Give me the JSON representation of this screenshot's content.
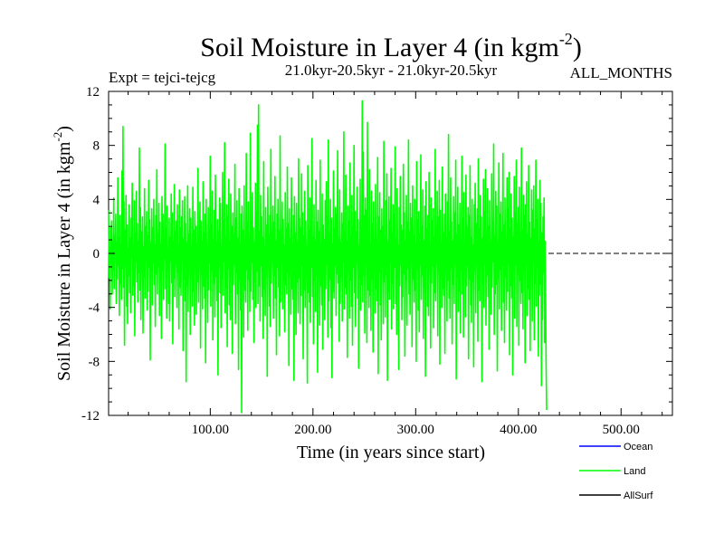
{
  "chart_data": {
    "type": "line",
    "title": "Soil Moisture in Layer 4 (in kgm",
    "title_sup": "-2",
    "title_close": ")",
    "experiment": "Expt = tejci-tejcg",
    "period": "21.0kyr-20.5kyr - 21.0kyr-20.5kyr",
    "months": "ALL_MONTHS",
    "xlabel": "Time (in years since start)",
    "ylabel": "Soil Moisture in Layer 4 (in kgm",
    "ylabel_sup": "-2",
    "ylabel_close": ")",
    "xlim": [
      1,
      550
    ],
    "ylim": [
      -12,
      12
    ],
    "x_ticks": [
      100,
      200,
      300,
      400,
      500
    ],
    "x_tick_labels": [
      "100.00",
      "200.00",
      "300.00",
      "400.00",
      "500.00"
    ],
    "y_ticks": [
      12,
      8,
      4,
      0,
      -4,
      -8,
      -12
    ],
    "y_tick_labels": [
      "12",
      "8",
      "4",
      "0",
      "-4",
      "-8",
      "-12"
    ],
    "zero_line": "dashed",
    "legend": [
      {
        "name": "Ocean",
        "color": "#0000ff"
      },
      {
        "name": "Land",
        "color": "#00ff00"
      },
      {
        "name": "AllSurf",
        "color": "#000000"
      }
    ],
    "series": [
      {
        "name": "Land",
        "color": "#00ff00",
        "x_start": 1,
        "x_step": 0.5,
        "values": [
          3.2,
          -1.8,
          0.5,
          -4.1,
          1.9,
          -0.7,
          2.4,
          -3.0,
          0.9,
          -1.2,
          4.1,
          -2.6,
          1.3,
          -0.4,
          2.9,
          -3.7,
          0.8,
          -1.9,
          5.6,
          -0.8,
          1.2,
          -4.6,
          2.8,
          -2.2,
          0.6,
          -3.4,
          6.1,
          -1.1,
          9.4,
          -2.5,
          3.8,
          -6.8,
          1.7,
          -0.9,
          4.3,
          -3.9,
          2.1,
          -5.2,
          0.4,
          -1.6,
          3.6,
          -2.9,
          1.1,
          -4.4,
          2.6,
          -0.3,
          5.2,
          -3.1,
          0.7,
          -2.4,
          3.9,
          -6.1,
          1.5,
          -0.6,
          4.6,
          -2.1,
          2.2,
          -3.6,
          0.9,
          -1.4,
          7.8,
          -2.7,
          3.4,
          -4.9,
          1.6,
          -0.8,
          2.7,
          -5.9,
          0.5,
          -1.7,
          4.8,
          -3.3,
          2.0,
          -0.5,
          3.1,
          -4.2,
          1.3,
          -2.8,
          5.4,
          -1.0,
          2.5,
          -7.9,
          0.8,
          -1.3,
          3.3,
          -3.8,
          1.9,
          -0.7,
          4.0,
          -2.3,
          0.6,
          -5.4,
          2.8,
          -1.5,
          6.2,
          -3.0,
          1.4,
          -0.9,
          3.7,
          -4.6,
          2.3,
          -2.0,
          0.7,
          -6.3,
          4.2,
          -1.2,
          2.9,
          -3.4,
          1.0,
          -0.4,
          8.1,
          -2.6,
          1.8,
          -4.8,
          3.5,
          -1.1,
          0.4,
          -3.7,
          2.6,
          -5.0,
          1.2,
          -0.6,
          4.4,
          -2.2,
          3.0,
          -6.7,
          0.9,
          -1.8,
          5.1,
          -3.2,
          1.6,
          -0.8,
          2.4,
          -4.0,
          3.6,
          -1.4,
          0.6,
          -5.6,
          4.7,
          -2.5,
          1.9,
          -3.1,
          2.7,
          -0.5,
          3.9,
          -7.2,
          1.1,
          -1.9,
          4.2,
          -3.5,
          2.2,
          -9.5,
          0.8,
          -2.4,
          5.0,
          -4.3,
          1.4,
          -0.9,
          3.3,
          -6.0,
          2.6,
          -1.6,
          0.5,
          -3.9,
          4.9,
          -2.8,
          1.7,
          -5.3,
          3.1,
          -1.0,
          2.0,
          -4.5,
          0.7,
          -2.1,
          6.3,
          -3.6,
          1.3,
          -0.6,
          3.8,
          -7.0,
          2.4,
          -1.5,
          0.9,
          -4.1,
          5.3,
          -2.4,
          1.5,
          -3.3,
          2.9,
          -8.1,
          4.0,
          -1.2,
          0.6,
          -5.1,
          3.4,
          -2.7,
          1.8,
          -0.7,
          7.2,
          -3.9,
          2.1,
          -1.3,
          4.6,
          -6.4,
          1.0,
          -2.2,
          3.2,
          -4.7,
          5.8,
          -1.7,
          0.8,
          -3.5,
          2.5,
          -9.0,
          1.6,
          -0.9,
          4.1,
          -2.9,
          3.7,
          -5.5,
          0.5,
          -1.8,
          6.0,
          -3.1,
          2.3,
          -0.6,
          8.2,
          -4.4,
          1.2,
          -2.5,
          3.6,
          -6.9,
          2.7,
          -1.1,
          5.5,
          -3.8,
          0.9,
          -4.9,
          4.4,
          -1.6,
          2.0,
          -7.4,
          3.0,
          -2.3,
          1.4,
          -0.8,
          6.6,
          -5.2,
          2.6,
          -1.4,
          3.9,
          -3.0,
          1.1,
          -8.6,
          4.8,
          -2.0,
          0.7,
          -4.2,
          2.9,
          -11.8,
          3.5,
          -1.5,
          1.7,
          -6.2,
          5.0,
          -2.7,
          0.6,
          -3.6,
          7.4,
          -1.2,
          2.3,
          -5.7,
          3.8,
          -1.9,
          1.0,
          -4.3,
          8.9,
          -2.8,
          2.4,
          -0.7,
          4.5,
          -3.4,
          1.9,
          -6.6,
          0.8,
          -2.1,
          5.2,
          -4.0,
          3.1,
          -1.3,
          9.5,
          -3.7,
          11.0,
          -2.4,
          1.6,
          -5.0,
          4.3,
          -0.9,
          2.7,
          -3.2,
          1.2,
          -6.3,
          6.8,
          -2.6,
          0.5,
          -4.6,
          3.4,
          -1.7,
          2.1,
          -9.1,
          4.9,
          -1.1,
          1.4,
          -3.9,
          2.8,
          -5.4,
          7.7,
          -2.2,
          1.0,
          -0.6,
          3.5,
          -4.8,
          2.3,
          -1.6,
          5.7,
          -3.3,
          0.9,
          -7.5,
          2.9,
          -1.0,
          4.0,
          -2.5,
          1.7,
          -6.1,
          8.7,
          -3.6,
          1.3,
          -0.7,
          3.8,
          -4.1,
          2.5,
          -1.9,
          0.6,
          -5.8,
          4.5,
          -2.3,
          1.8,
          -3.0,
          6.4,
          -1.4,
          2.2,
          -8.3,
          3.3,
          -0.8,
          1.1,
          -4.5,
          5.6,
          -2.6,
          0.7,
          -3.4,
          2.8,
          -9.4,
          4.2,
          -1.5,
          1.5,
          -6.0,
          3.7,
          -2.1,
          0.8,
          -4.4,
          7.0,
          -1.8,
          2.6,
          -5.2,
          1.9,
          -3.1,
          5.9,
          -0.9,
          3.0,
          -7.8,
          1.3,
          -2.7,
          4.6,
          -4.0,
          2.4,
          -1.2,
          0.5,
          -9.6,
          6.5,
          -2.9,
          1.7,
          -3.6,
          4.1,
          -5.1,
          2.0,
          -1.0,
          8.5,
          -3.2,
          1.2,
          -6.7,
          3.6,
          -2.0,
          0.9,
          -4.3,
          5.4,
          -1.6,
          2.3,
          -8.8,
          3.2,
          -1.1,
          1.6,
          -5.3,
          6.9,
          -2.4,
          0.6,
          -3.8,
          4.4,
          -7.1,
          2.1,
          -1.4,
          1.0,
          -4.9,
          3.9,
          -2.6,
          5.3,
          -0.8,
          2.7,
          -6.2,
          8.4,
          -3.5,
          1.4,
          -1.9,
          4.0,
          -5.5,
          2.6,
          -9.2,
          0.7,
          -2.8,
          6.1,
          -3.3,
          1.8,
          -0.9,
          3.4,
          -4.6,
          2.9,
          -1.5,
          7.6,
          -2.2,
          1.1,
          -6.5,
          4.7,
          -3.7,
          0.8,
          -1.7,
          3.0,
          -5.0,
          2.2,
          -0.6,
          9.0,
          -4.1,
          1.5,
          -2.5,
          5.8,
          -3.0,
          0.9,
          -7.7,
          3.5,
          -1.3,
          2.4,
          -4.8,
          6.7,
          -2.0,
          1.3,
          -3.9,
          4.3,
          -6.8,
          2.0,
          -1.0,
          8.0,
          -2.9,
          3.1,
          -5.4,
          1.6,
          -0.7,
          4.9,
          -3.3,
          2.5,
          -8.5,
          0.6,
          -1.8,
          5.5,
          -4.2,
          1.9,
          -2.3,
          11.3,
          -3.6,
          7.5,
          -1.6,
          2.8,
          -5.9,
          4.1,
          -0.8,
          3.2,
          -6.6,
          9.7,
          -2.7,
          1.4,
          -4.0,
          6.2,
          -3.1,
          0.7,
          -5.7,
          4.6,
          -1.9,
          2.2,
          -7.3,
          3.8,
          -1.2,
          1.0,
          -4.4,
          5.1,
          -2.6,
          0.5,
          -3.5,
          7.1,
          -8.9,
          2.7,
          -1.4,
          4.5,
          -3.8,
          1.7,
          -6.4,
          3.3,
          -0.9,
          2.0,
          -5.2,
          8.3,
          -2.1,
          1.2,
          -4.7,
          3.9,
          -1.6,
          5.9,
          -9.4,
          0.8,
          -2.8,
          4.2,
          -3.4,
          2.4,
          -0.7,
          6.3,
          -5.6,
          1.5,
          -2.2,
          3.6,
          -4.1,
          2.9,
          -1.0,
          7.9,
          -3.7,
          1.1,
          -6.0,
          4.8,
          -1.8,
          0.6,
          -8.6,
          3.4,
          -2.4,
          5.7,
          -0.8,
          2.1,
          -4.9,
          1.7,
          -3.2,
          6.6,
          -1.5,
          3.0,
          -7.6,
          0.9,
          -2.0,
          4.3,
          -5.3,
          2.3,
          -1.1,
          8.4,
          -3.0,
          1.6,
          -4.5,
          3.7,
          -0.6,
          2.6,
          -6.9,
          5.0,
          -1.9,
          1.3,
          -3.6,
          4.0,
          -2.7,
          0.7,
          -8.0,
          6.8,
          -1.2,
          2.5,
          -4.2,
          3.1,
          -5.8,
          1.4,
          -0.8,
          7.3,
          -3.4,
          2.0,
          -1.6,
          4.7,
          -6.3,
          0.9,
          -2.5,
          3.5,
          -9.1,
          5.3,
          -1.0,
          1.8,
          -3.9,
          2.8,
          -4.6,
          6.0,
          -1.3,
          0.6,
          -7.0,
          4.1,
          -2.2,
          2.4,
          -0.9,
          3.3,
          -5.5,
          1.2,
          -2.9,
          7.7,
          -3.5,
          1.9,
          -0.7,
          4.6,
          -6.1,
          2.7,
          -1.4,
          5.4,
          -8.2,
          3.2,
          -1.8,
          0.8,
          -4.0,
          6.4,
          -2.6,
          1.5,
          -3.1,
          2.9,
          -7.4,
          4.4,
          -0.6,
          1.1,
          -5.0,
          3.8,
          -2.0,
          8.8,
          -3.3,
          1.6,
          -4.8,
          5.6,
          -1.1,
          2.3,
          -6.7,
          0.9,
          -2.3,
          4.2,
          -3.7,
          3.0,
          -0.8,
          6.9,
          -9.3,
          1.4,
          -1.7,
          4.9,
          -4.3,
          2.1,
          -2.8,
          3.7,
          -5.9,
          1.0,
          -1.2,
          7.2,
          -3.0,
          2.6,
          -6.2,
          4.5,
          -1.5,
          0.7,
          -4.7,
          5.8,
          -2.4,
          1.9,
          -0.9,
          3.4,
          -7.8,
          2.8,
          -1.9,
          6.5,
          -3.8,
          1.2,
          -5.1,
          4.0,
          -2.1,
          0.6,
          -8.4,
          3.6,
          -1.3,
          5.2,
          -4.4,
          2.2,
          -0.7,
          3.3,
          -6.5,
          7.0,
          -2.7,
          1.8,
          -3.5,
          4.3,
          -1.0,
          2.7,
          -9.5,
          1.1,
          -2.2,
          5.5,
          -4.0,
          3.1,
          -0.8,
          6.2,
          -5.3,
          1.5,
          -1.6,
          4.8,
          -3.2,
          2.0,
          -7.1,
          3.9,
          -1.4,
          0.9,
          -4.5,
          5.9,
          -2.5,
          2.4,
          -0.6,
          8.1,
          -6.0,
          1.3,
          -3.0,
          4.6,
          -2.3,
          3.5,
          -8.7,
          0.8,
          -1.8,
          6.7,
          -4.1,
          2.9,
          -1.2,
          3.8,
          -5.7,
          1.6,
          -0.9,
          7.4,
          -3.6,
          2.1,
          -6.6,
          4.1,
          -1.7,
          1.0,
          -4.2,
          5.6,
          -2.8,
          3.3,
          -0.7,
          6.0,
          -7.5,
          1.9,
          -2.4,
          4.4,
          -3.3,
          2.6,
          -9.0,
          1.2,
          -1.1,
          5.7,
          -4.8,
          3.0,
          -0.8,
          6.9,
          -5.4,
          2.2,
          -1.5,
          3.4,
          -6.8,
          4.9,
          -2.0,
          0.7,
          -3.7,
          7.8,
          -2.9,
          1.7,
          -5.6,
          4.3,
          -1.3,
          2.8,
          -8.1,
          3.6,
          -0.9,
          5.3,
          -4.6,
          1.4,
          -2.6,
          6.5,
          -3.4,
          2.3,
          -7.2,
          1.1,
          -1.6,
          4.7,
          -5.0,
          3.2,
          -0.6,
          5.0,
          -6.4,
          1.8,
          -2.2,
          6.9,
          -3.9,
          2.5,
          -1.0,
          4.0,
          -7.6,
          0.8,
          -3.1,
          5.4,
          -2.3,
          3.7,
          -9.8,
          1.5,
          -4.9,
          2.7,
          -1.4,
          4.1,
          -6.6,
          0.9,
          -3.0,
          -8.0,
          -11.6
        ]
      }
    ]
  }
}
